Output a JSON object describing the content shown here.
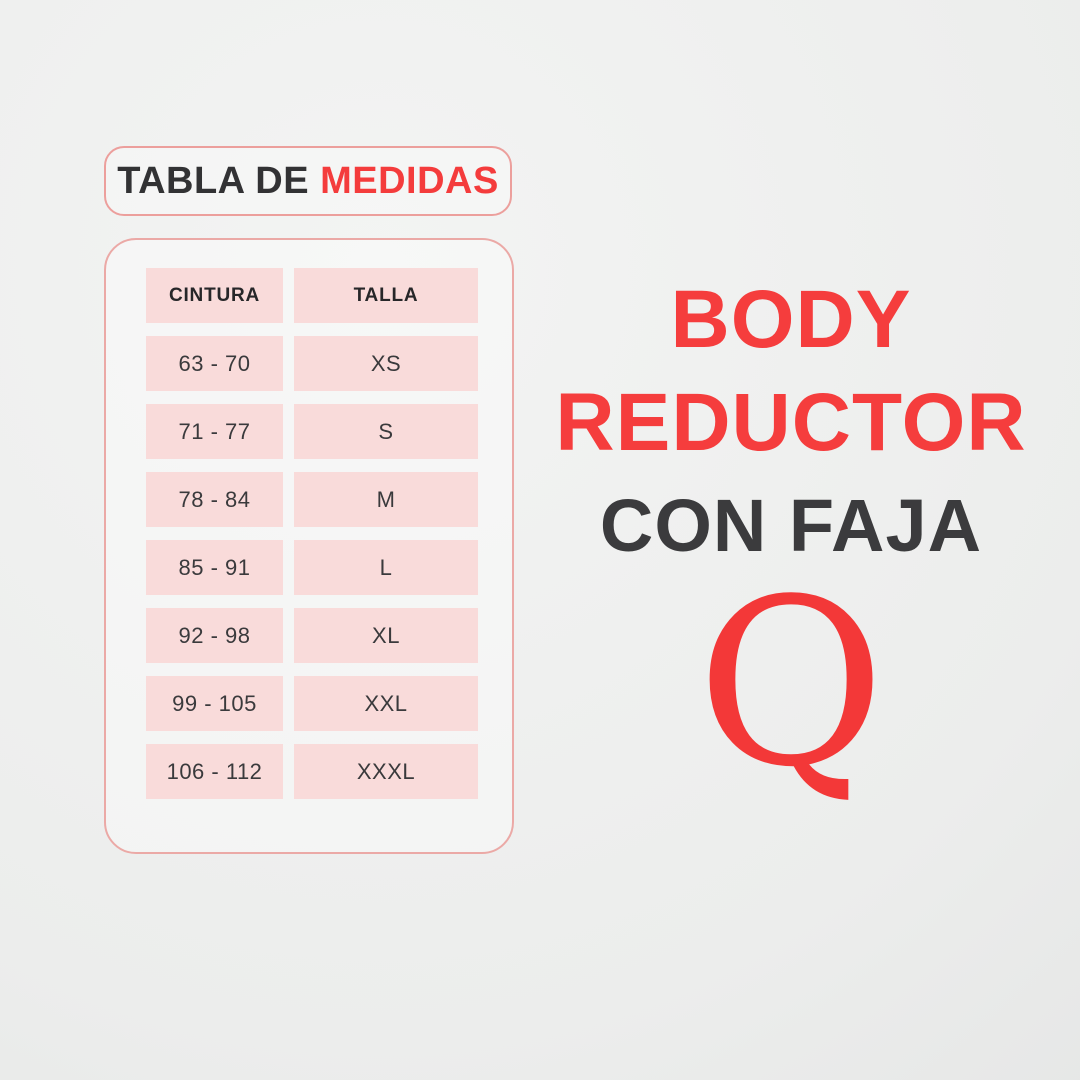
{
  "title_box": {
    "text_dark": "TABLA DE",
    "text_red": "MEDIDAS"
  },
  "chart_data": {
    "type": "table",
    "title": "TABLA DE MEDIDAS",
    "columns": [
      "CINTURA",
      "TALLA"
    ],
    "rows": [
      [
        "63 - 70",
        "XS"
      ],
      [
        "71 - 77",
        "S"
      ],
      [
        "78 - 84",
        "M"
      ],
      [
        "85 - 91",
        "L"
      ],
      [
        "92 - 98",
        "XL"
      ],
      [
        "99 - 105",
        "XXL"
      ],
      [
        "106 - 112",
        "XXXL"
      ]
    ],
    "layout": "two-column size chart, header row plus 7 data rows, pink cells on light card with rounded pink border"
  },
  "right_panel": {
    "heading_line1": "BODY",
    "heading_line2": "REDUCTOR",
    "subheading": "CON FAJA",
    "brand_letter": "Q"
  },
  "colors": {
    "accent_red": "#f43c3c",
    "dark_text": "#323234",
    "cell_pink": "#f9dbda",
    "border_pink": "#eba9a6",
    "background_gray": "#ecedec"
  }
}
